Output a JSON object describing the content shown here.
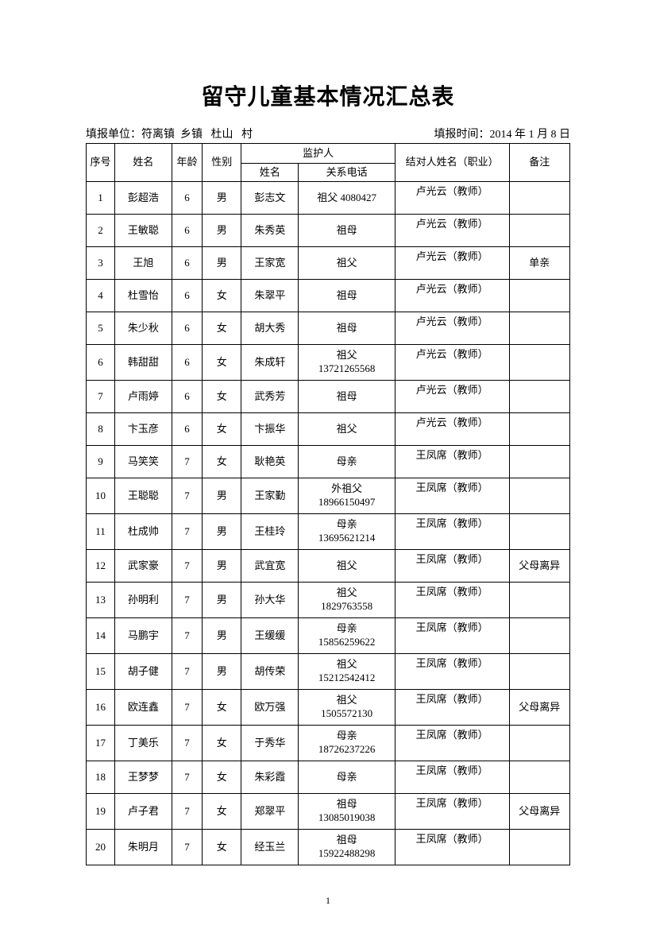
{
  "title": "留守儿童基本情况汇总表",
  "meta": {
    "unit_label": "填报单位：",
    "unit_town": "符离镇",
    "unit_township_label": "乡镇",
    "unit_village": "杜山",
    "unit_village_label": "村",
    "time_label": "填报时间：",
    "time_value": "2014 年 1 月 8 日"
  },
  "headers": {
    "idx": "序号",
    "name": "姓名",
    "age": "年龄",
    "gender": "性别",
    "guardian": "监护人",
    "guardian_name": "姓名",
    "guardian_rel": "关系电话",
    "contact": "结对人姓名（职业）",
    "note": "备注"
  },
  "rows": [
    {
      "idx": "1",
      "name": "彭超浩",
      "age": "6",
      "gender": "男",
      "gname": "彭志文",
      "grel": "祖父 4080427",
      "contact": "卢光云（教师）",
      "note": ""
    },
    {
      "idx": "2",
      "name": "王敏聪",
      "age": "6",
      "gender": "男",
      "gname": "朱秀英",
      "grel": "祖母",
      "contact": "卢光云（教师）",
      "note": ""
    },
    {
      "idx": "3",
      "name": "王旭",
      "age": "6",
      "gender": "男",
      "gname": "王家宽",
      "grel": "祖父",
      "contact": "卢光云（教师）",
      "note": "单亲"
    },
    {
      "idx": "4",
      "name": "杜雪怡",
      "age": "6",
      "gender": "女",
      "gname": "朱翠平",
      "grel": "祖母",
      "contact": "卢光云（教师）",
      "note": ""
    },
    {
      "idx": "5",
      "name": "朱少秋",
      "age": "6",
      "gender": "女",
      "gname": "胡大秀",
      "grel": "祖母",
      "contact": "卢光云（教师）",
      "note": ""
    },
    {
      "idx": "6",
      "name": "韩甜甜",
      "age": "6",
      "gender": "女",
      "gname": "朱成轩",
      "grel": "祖父\n13721265568",
      "contact": "卢光云（教师）",
      "note": ""
    },
    {
      "idx": "7",
      "name": "卢雨婷",
      "age": "6",
      "gender": "女",
      "gname": "武秀芳",
      "grel": "祖母",
      "contact": "卢光云（教师）",
      "note": ""
    },
    {
      "idx": "8",
      "name": "卞玉彦",
      "age": "6",
      "gender": "女",
      "gname": "卞振华",
      "grel": "祖父",
      "contact": "卢光云（教师）",
      "note": ""
    },
    {
      "idx": "9",
      "name": "马笑笑",
      "age": "7",
      "gender": "女",
      "gname": "耿艳英",
      "grel": "母亲",
      "contact": "王凤席（教师）",
      "note": ""
    },
    {
      "idx": "10",
      "name": "王聪聪",
      "age": "7",
      "gender": "男",
      "gname": "王家勤",
      "grel": "外祖父\n18966150497",
      "contact": "王凤席（教师）",
      "note": ""
    },
    {
      "idx": "11",
      "name": "杜成帅",
      "age": "7",
      "gender": "男",
      "gname": "王桂玲",
      "grel": "母亲\n13695621214",
      "contact": "王凤席（教师）",
      "note": ""
    },
    {
      "idx": "12",
      "name": "武家豪",
      "age": "7",
      "gender": "男",
      "gname": "武宜宽",
      "grel": "祖父",
      "contact": "王凤席（教师）",
      "note": "父母离异"
    },
    {
      "idx": "13",
      "name": "孙明利",
      "age": "7",
      "gender": "男",
      "gname": "孙大华",
      "grel": "祖父\n1829763558",
      "contact": "王凤席（教师）",
      "note": ""
    },
    {
      "idx": "14",
      "name": "马鹏宇",
      "age": "7",
      "gender": "男",
      "gname": "王缓缓",
      "grel": "母亲\n15856259622",
      "contact": "王凤席（教师）",
      "note": ""
    },
    {
      "idx": "15",
      "name": "胡子健",
      "age": "7",
      "gender": "男",
      "gname": "胡传荣",
      "grel": "祖父\n15212542412",
      "contact": "王凤席（教师）",
      "note": ""
    },
    {
      "idx": "16",
      "name": "欧连鑫",
      "age": "7",
      "gender": "女",
      "gname": "欧万强",
      "grel": "祖父\n1505572130",
      "contact": "王凤席（教师）",
      "note": "父母离异"
    },
    {
      "idx": "17",
      "name": "丁美乐",
      "age": "7",
      "gender": "女",
      "gname": "于秀华",
      "grel": "母亲\n18726237226",
      "contact": "王凤席（教师）",
      "note": ""
    },
    {
      "idx": "18",
      "name": "王梦梦",
      "age": "7",
      "gender": "女",
      "gname": "朱彩霞",
      "grel": "母亲",
      "contact": "王凤席（教师）",
      "note": ""
    },
    {
      "idx": "19",
      "name": "卢子君",
      "age": "7",
      "gender": "女",
      "gname": "郑翠平",
      "grel": "祖母\n13085019038",
      "contact": "王凤席（教师）",
      "note": "父母离异"
    },
    {
      "idx": "20",
      "name": "朱明月",
      "age": "7",
      "gender": "女",
      "gname": "经玉兰",
      "grel": "祖母\n15922488298",
      "contact": "王凤席（教师）",
      "note": ""
    }
  ],
  "page_number": "1"
}
